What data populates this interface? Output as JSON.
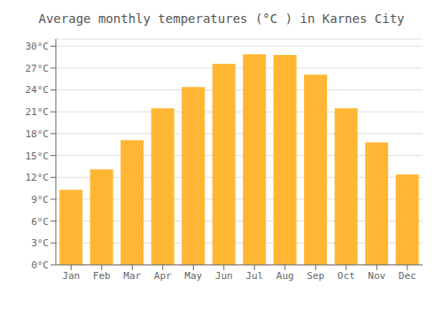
{
  "chart_data": {
    "type": "bar",
    "title": "Average monthly temperatures (°C ) in Karnes City",
    "categories": [
      "Jan",
      "Feb",
      "Mar",
      "Apr",
      "May",
      "Jun",
      "Jul",
      "Aug",
      "Sep",
      "Oct",
      "Nov",
      "Dec"
    ],
    "values": [
      10.3,
      13.1,
      17.1,
      21.5,
      24.4,
      27.6,
      28.9,
      28.8,
      26.1,
      21.5,
      16.8,
      12.4
    ],
    "color": "#FFB733",
    "ylim": [
      0,
      31
    ],
    "yticks": [
      {
        "value": 0,
        "label": "0°C"
      },
      {
        "value": 3,
        "label": "3°C"
      },
      {
        "value": 6,
        "label": "6°C"
      },
      {
        "value": 9,
        "label": "9°C"
      },
      {
        "value": 12,
        "label": "12°C"
      },
      {
        "value": 15,
        "label": "15°C"
      },
      {
        "value": 18,
        "label": "18°C"
      },
      {
        "value": 21,
        "label": "21°C"
      },
      {
        "value": 24,
        "label": "24°C"
      },
      {
        "value": 27,
        "label": "27°C"
      },
      {
        "value": 30,
        "label": "30°C"
      }
    ],
    "grid": true
  }
}
